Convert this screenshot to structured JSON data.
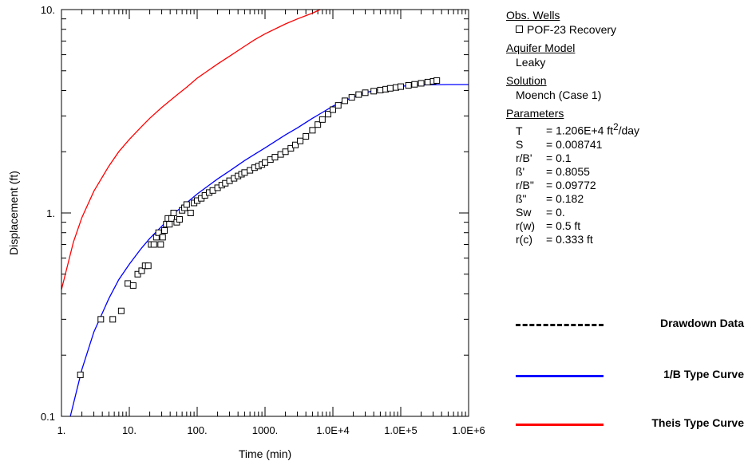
{
  "chart_data": {
    "type": "scatter",
    "x_scale": "log",
    "y_scale": "log",
    "xlim": [
      1,
      1000000
    ],
    "ylim": [
      0.1,
      10
    ],
    "xlabel": "Time (min)",
    "ylabel": "Displacement (ft)",
    "x_ticks": [
      {
        "value": 1,
        "label": "1."
      },
      {
        "value": 10,
        "label": "10."
      },
      {
        "value": 100,
        "label": "100."
      },
      {
        "value": 1000,
        "label": "1000."
      },
      {
        "value": 10000,
        "label": "1.0E+4"
      },
      {
        "value": 100000,
        "label": "1.0E+5"
      },
      {
        "value": 1000000,
        "label": "1.0E+6"
      }
    ],
    "y_ticks": [
      {
        "value": 0.1,
        "label": "0.1"
      },
      {
        "value": 1,
        "label": "1."
      },
      {
        "value": 10,
        "label": "10."
      }
    ],
    "grid": false,
    "series": [
      {
        "name": "POF-23 Recovery",
        "kind": "markers",
        "color": "#000000",
        "points": [
          [
            1.9,
            0.16
          ],
          [
            3.8,
            0.3
          ],
          [
            5.7,
            0.3
          ],
          [
            7.6,
            0.33
          ],
          [
            9.5,
            0.45
          ],
          [
            11.4,
            0.44
          ],
          [
            13.3,
            0.5
          ],
          [
            15.2,
            0.52
          ],
          [
            17.1,
            0.55
          ],
          [
            19,
            0.55
          ],
          [
            21,
            0.7
          ],
          [
            23,
            0.7
          ],
          [
            25,
            0.76
          ],
          [
            27,
            0.8
          ],
          [
            29,
            0.7
          ],
          [
            31,
            0.76
          ],
          [
            33,
            0.82
          ],
          [
            35,
            0.88
          ],
          [
            37,
            0.94
          ],
          [
            39,
            0.88
          ],
          [
            42,
            0.94
          ],
          [
            45,
            1.0
          ],
          [
            50,
            0.9
          ],
          [
            55,
            0.93
          ],
          [
            60,
            1.03
          ],
          [
            65,
            1.06
          ],
          [
            70,
            1.1
          ],
          [
            80,
            1.0
          ],
          [
            90,
            1.12
          ],
          [
            100,
            1.15
          ],
          [
            115,
            1.18
          ],
          [
            130,
            1.22
          ],
          [
            150,
            1.26
          ],
          [
            170,
            1.29
          ],
          [
            200,
            1.33
          ],
          [
            230,
            1.37
          ],
          [
            260,
            1.4
          ],
          [
            300,
            1.44
          ],
          [
            350,
            1.48
          ],
          [
            400,
            1.52
          ],
          [
            450,
            1.55
          ],
          [
            500,
            1.58
          ],
          [
            600,
            1.62
          ],
          [
            700,
            1.67
          ],
          [
            800,
            1.7
          ],
          [
            900,
            1.73
          ],
          [
            1000,
            1.77
          ],
          [
            1200,
            1.83
          ],
          [
            1400,
            1.88
          ],
          [
            1700,
            1.94
          ],
          [
            2000,
            2.0
          ],
          [
            2400,
            2.08
          ],
          [
            2800,
            2.16
          ],
          [
            3300,
            2.26
          ],
          [
            4000,
            2.38
          ],
          [
            5000,
            2.55
          ],
          [
            6000,
            2.72
          ],
          [
            7000,
            2.88
          ],
          [
            8500,
            3.06
          ],
          [
            10000,
            3.22
          ],
          [
            12000,
            3.38
          ],
          [
            15000,
            3.56
          ],
          [
            19000,
            3.7
          ],
          [
            24000,
            3.82
          ],
          [
            30000,
            3.9
          ],
          [
            40000,
            3.97
          ],
          [
            50000,
            4.02
          ],
          [
            60000,
            4.06
          ],
          [
            70000,
            4.1
          ],
          [
            85000,
            4.14
          ],
          [
            100000,
            4.18
          ],
          [
            130000,
            4.24
          ],
          [
            160000,
            4.29
          ],
          [
            200000,
            4.34
          ],
          [
            250000,
            4.4
          ],
          [
            300000,
            4.44
          ],
          [
            340000,
            4.48
          ]
        ]
      },
      {
        "name": "1/B Type Curve",
        "kind": "line",
        "color": "#0000ff",
        "points": [
          [
            1.35,
            0.1
          ],
          [
            2,
            0.17
          ],
          [
            3,
            0.26
          ],
          [
            5,
            0.38
          ],
          [
            7,
            0.47
          ],
          [
            10,
            0.56
          ],
          [
            15,
            0.67
          ],
          [
            20,
            0.75
          ],
          [
            30,
            0.86
          ],
          [
            50,
            1.02
          ],
          [
            70,
            1.12
          ],
          [
            100,
            1.24
          ],
          [
            150,
            1.37
          ],
          [
            200,
            1.47
          ],
          [
            300,
            1.61
          ],
          [
            500,
            1.81
          ],
          [
            700,
            1.94
          ],
          [
            1000,
            2.09
          ],
          [
            2000,
            2.42
          ],
          [
            3000,
            2.62
          ],
          [
            5000,
            2.92
          ],
          [
            7000,
            3.12
          ],
          [
            10000,
            3.35
          ],
          [
            20000,
            3.72
          ],
          [
            30000,
            3.9
          ],
          [
            50000,
            4.06
          ],
          [
            100000,
            4.2
          ],
          [
            200000,
            4.26
          ],
          [
            500000,
            4.28
          ],
          [
            1000000,
            4.28
          ]
        ]
      },
      {
        "name": "Theis Type Curve",
        "kind": "line",
        "color": "#ff0000",
        "points": [
          [
            1,
            0.42
          ],
          [
            1.5,
            0.72
          ],
          [
            2,
            0.95
          ],
          [
            3,
            1.28
          ],
          [
            5,
            1.7
          ],
          [
            7,
            2.0
          ],
          [
            10,
            2.3
          ],
          [
            15,
            2.65
          ],
          [
            20,
            2.92
          ],
          [
            30,
            3.3
          ],
          [
            50,
            3.8
          ],
          [
            70,
            4.15
          ],
          [
            100,
            4.6
          ],
          [
            200,
            5.4
          ],
          [
            300,
            5.9
          ],
          [
            500,
            6.6
          ],
          [
            700,
            7.1
          ],
          [
            1000,
            7.6
          ],
          [
            2000,
            8.5
          ],
          [
            3000,
            9.0
          ],
          [
            5000,
            9.6
          ],
          [
            6500,
            10.0
          ]
        ]
      }
    ],
    "legend": [
      {
        "label": "Drawdown Data",
        "style": "dashed",
        "color": "#000000"
      },
      {
        "label": "1/B Type Curve",
        "style": "solid",
        "color": "#0000ff"
      },
      {
        "label": "Theis Type Curve",
        "style": "solid",
        "color": "#ff0000"
      }
    ]
  },
  "panel": {
    "obs_wells_header": "Obs. Wells",
    "obs_well": "POF-23 Recovery",
    "aquifer_model_header": "Aquifer Model",
    "aquifer_model": "Leaky",
    "solution_header": "Solution",
    "solution": "Moench (Case 1)",
    "parameters_header": "Parameters",
    "parameters": [
      {
        "name": "T",
        "value": "= 1.206E+4 ft",
        "sup": "2",
        "suffix": "/day"
      },
      {
        "name": "S",
        "value": "= 0.008741"
      },
      {
        "name": "r/B'",
        "value": "= 0.1"
      },
      {
        "name": "ß'",
        "value": "= 0.8055"
      },
      {
        "name": "r/B\"",
        "value": "= 0.09772"
      },
      {
        "name": "ß\"",
        "value": "= 0.182"
      },
      {
        "name": "Sw",
        "value": "= 0."
      },
      {
        "name": "r(w)",
        "value": "= 0.5 ft"
      },
      {
        "name": "r(c)",
        "value": "= 0.333 ft"
      }
    ]
  }
}
